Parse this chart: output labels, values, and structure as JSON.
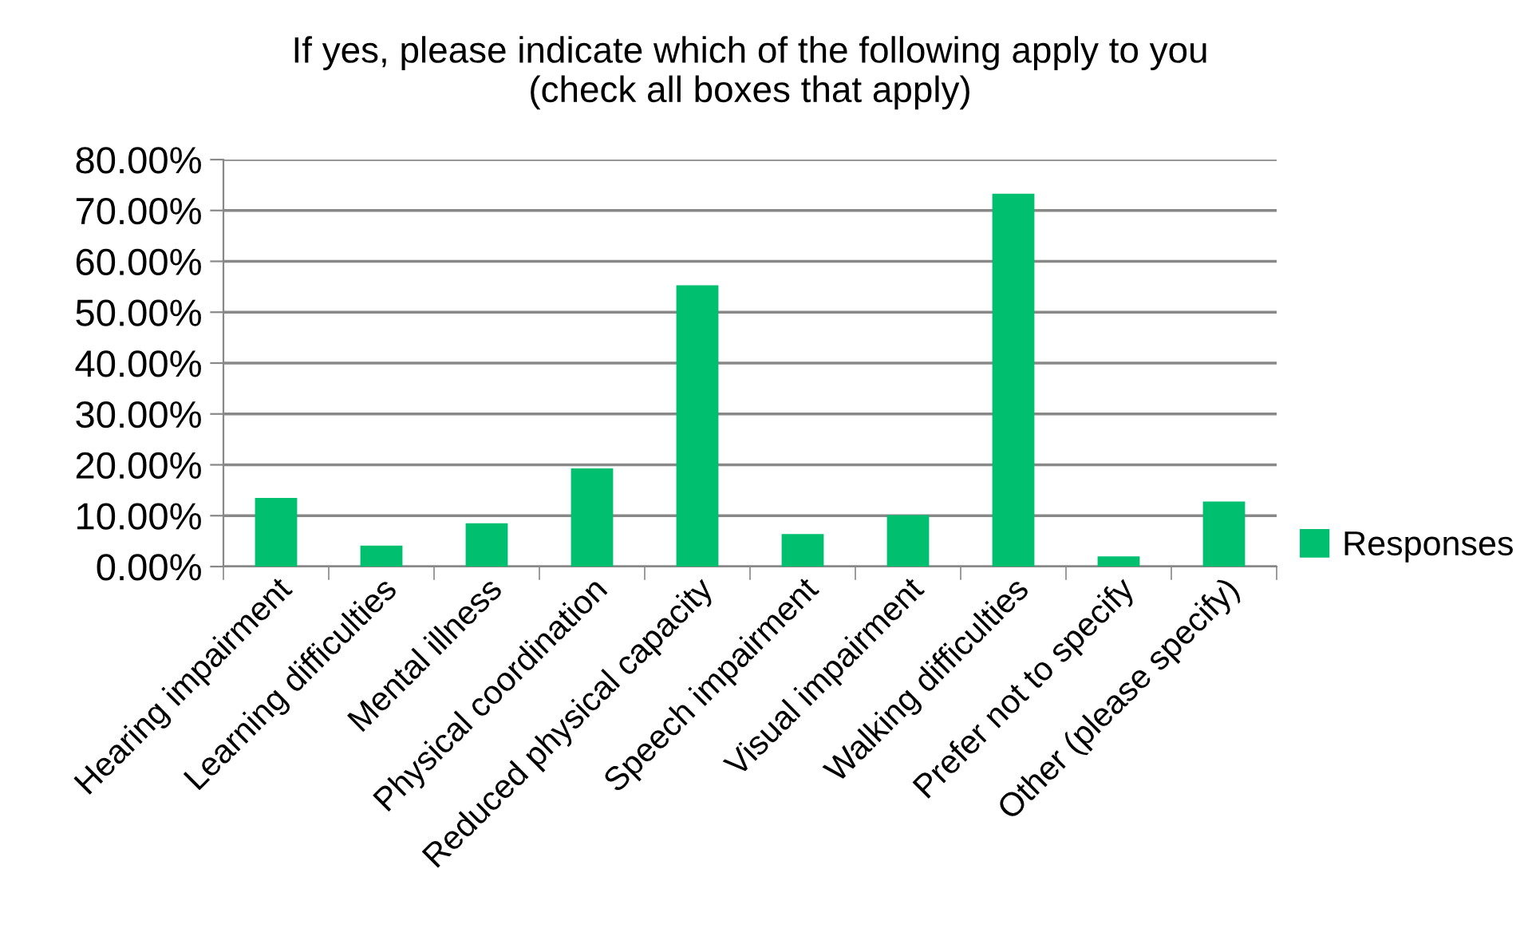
{
  "chart_data": {
    "type": "bar",
    "title": "If yes, please indicate which of the following apply to you\n(check all boxes that apply)",
    "categories": [
      "Hearing impairment",
      "Learning difficulties",
      "Mental illness",
      "Physical coordination",
      "Reduced physical capacity",
      "Speech impairment",
      "Visual impairment",
      "Walking difficulties",
      "Prefer not to specify",
      "Other (please specify)"
    ],
    "series": [
      {
        "name": "Responses",
        "color": "#00bf6f",
        "values": [
          13.5,
          4.1,
          8.5,
          19.3,
          55.3,
          6.4,
          10.1,
          73.3,
          2.0,
          12.8
        ]
      }
    ],
    "ylim": [
      0,
      80
    ],
    "yticks": [
      {
        "value": 0,
        "label": "0.00%"
      },
      {
        "value": 10,
        "label": "10.00%"
      },
      {
        "value": 20,
        "label": "20.00%"
      },
      {
        "value": 30,
        "label": "30.00%"
      },
      {
        "value": 40,
        "label": "40.00%"
      },
      {
        "value": 50,
        "label": "50.00%"
      },
      {
        "value": 60,
        "label": "60.00%"
      },
      {
        "value": 70,
        "label": "70.00%"
      },
      {
        "value": 80,
        "label": "80.00%"
      }
    ],
    "grid": "y",
    "legend": "right"
  }
}
